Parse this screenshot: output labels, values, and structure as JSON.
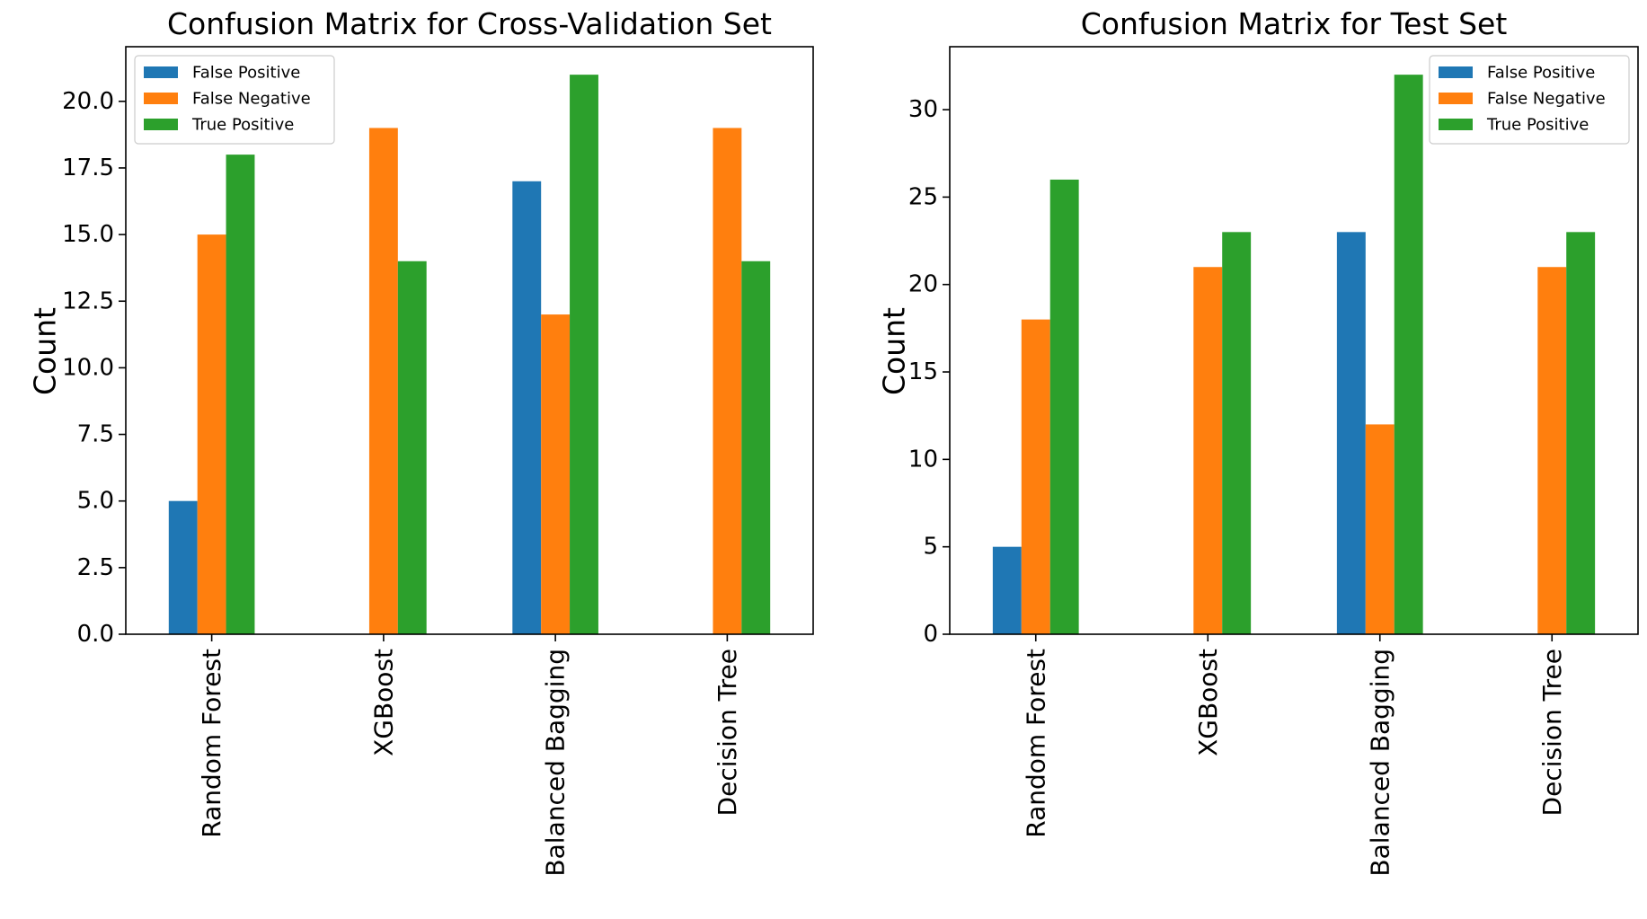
{
  "chart_data": [
    {
      "type": "bar",
      "title": "Confusion Matrix for Cross-Validation Set",
      "xlabel": "",
      "ylabel": "Count",
      "ylim": [
        0,
        22.05
      ],
      "yticks": [
        0,
        2.5,
        5,
        7.5,
        10,
        12.5,
        15,
        17.5,
        20
      ],
      "ytick_labels": [
        "0.0",
        "2.5",
        "5.0",
        "7.5",
        "10.0",
        "12.5",
        "15.0",
        "17.5",
        "20.0"
      ],
      "categories": [
        "Random Forest",
        "XGBoost",
        "Balanced Bagging",
        "Decision Tree"
      ],
      "series": [
        {
          "name": "False Positive",
          "color": "#1f77b4",
          "values": [
            5,
            0,
            17,
            0
          ]
        },
        {
          "name": "False Negative",
          "color": "#ff7f0e",
          "values": [
            15,
            19,
            12,
            19
          ]
        },
        {
          "name": "True Positive",
          "color": "#2ca02c",
          "values": [
            18,
            14,
            21,
            14
          ]
        }
      ],
      "legend_position": "top-left",
      "grid": false
    },
    {
      "type": "bar",
      "title": "Confusion Matrix for Test Set",
      "xlabel": "",
      "ylabel": "Count",
      "ylim": [
        0,
        33.6
      ],
      "yticks": [
        0,
        5,
        10,
        15,
        20,
        25,
        30
      ],
      "ytick_labels": [
        "0",
        "5",
        "10",
        "15",
        "20",
        "25",
        "30"
      ],
      "categories": [
        "Random Forest",
        "XGBoost",
        "Balanced Bagging",
        "Decision Tree"
      ],
      "series": [
        {
          "name": "False Positive",
          "color": "#1f77b4",
          "values": [
            5,
            0,
            23,
            0
          ]
        },
        {
          "name": "False Negative",
          "color": "#ff7f0e",
          "values": [
            18,
            21,
            12,
            21
          ]
        },
        {
          "name": "True Positive",
          "color": "#2ca02c",
          "values": [
            26,
            23,
            32,
            23
          ]
        }
      ],
      "legend_position": "top-right",
      "grid": false
    }
  ]
}
